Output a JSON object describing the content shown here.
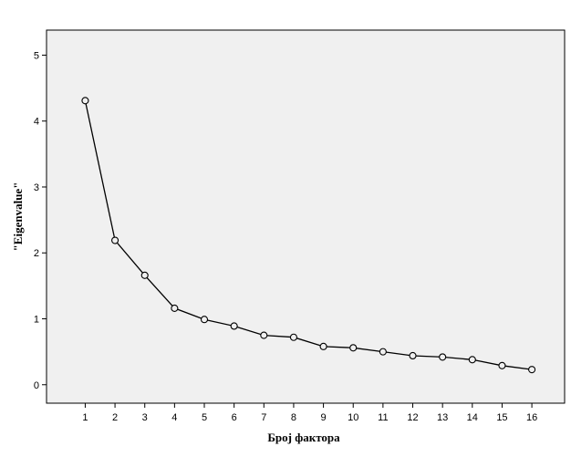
{
  "chart_data": {
    "type": "line",
    "title": "",
    "xlabel": "Број фактора",
    "ylabel": "\"Eigenvalue\"",
    "x": [
      1,
      2,
      3,
      4,
      5,
      6,
      7,
      8,
      9,
      10,
      11,
      12,
      13,
      14,
      15,
      16
    ],
    "series": [
      {
        "values": [
          4.31,
          2.19,
          1.66,
          1.16,
          0.99,
          0.89,
          0.75,
          0.72,
          0.58,
          0.56,
          0.5,
          0.44,
          0.42,
          0.38,
          0.29,
          0.23
        ]
      }
    ],
    "ylim": [
      -0.28,
      5.38
    ],
    "y_ticks": [
      0,
      1,
      2,
      3,
      4,
      5
    ],
    "xlim": [
      -0.3,
      17.1
    ],
    "grid": false,
    "legend": "none",
    "marker": "open-circle",
    "colors": {
      "plot_background": "#f0f0f0",
      "line": "#000000",
      "marker_fill": "#f0f0f0"
    }
  }
}
